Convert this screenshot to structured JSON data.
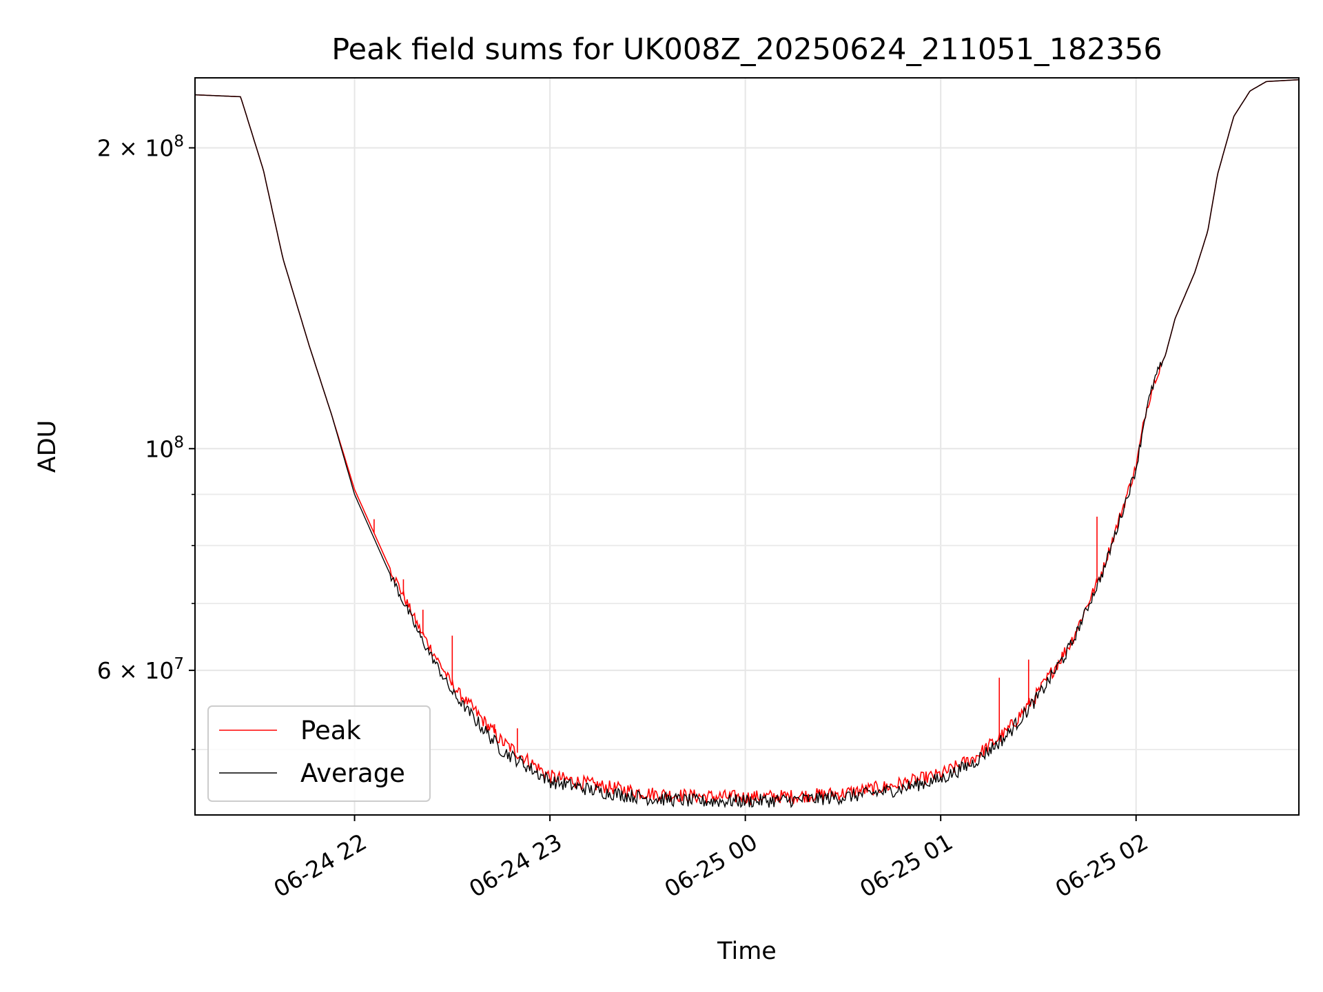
{
  "chart_data": {
    "type": "line",
    "title": "Peak field sums for UK008Z_20250624_211051_182356",
    "xlabel": "Time",
    "ylabel": "ADU",
    "yscale": "log",
    "ylim": [
      43000000,
      235000000
    ],
    "xlim": [
      "2025-06-24 21:11",
      "2025-06-25 02:50"
    ],
    "x_ticks": [
      {
        "value": "2025-06-24 22:00",
        "label": "06-24 22"
      },
      {
        "value": "2025-06-24 23:00",
        "label": "06-24 23"
      },
      {
        "value": "2025-06-25 00:00",
        "label": "06-25 00"
      },
      {
        "value": "2025-06-25 01:00",
        "label": "06-25 01"
      },
      {
        "value": "2025-06-25 02:00",
        "label": "06-25 02"
      }
    ],
    "y_ticks": [
      {
        "value": 60000000,
        "base": "6 × 10",
        "exp": "7"
      },
      {
        "value": 100000000,
        "base": "10",
        "exp": "8"
      },
      {
        "value": 200000000,
        "base": "2 × 10",
        "exp": "8"
      }
    ],
    "y_minor_ticks": [
      50000000,
      70000000,
      80000000,
      90000000
    ],
    "grid": true,
    "legend": {
      "position": "lower-left"
    },
    "series": [
      {
        "name": "Peak",
        "color": "#ff0000",
        "x": [
          "2025-06-24 21:11",
          "2025-06-24 21:25",
          "2025-06-24 21:32",
          "2025-06-24 21:38",
          "2025-06-24 21:46",
          "2025-06-24 21:53",
          "2025-06-24 22:00",
          "2025-06-24 22:10",
          "2025-06-24 22:20",
          "2025-06-24 22:30",
          "2025-06-24 22:45",
          "2025-06-24 23:00",
          "2025-06-24 23:15",
          "2025-06-24 23:30",
          "2025-06-24 23:45",
          "2025-06-25 00:00",
          "2025-06-25 00:15",
          "2025-06-25 00:30",
          "2025-06-25 00:45",
          "2025-06-25 01:00",
          "2025-06-25 01:10",
          "2025-06-25 01:20",
          "2025-06-25 01:30",
          "2025-06-25 01:40",
          "2025-06-25 01:50",
          "2025-06-25 02:00",
          "2025-06-25 02:03",
          "2025-06-25 02:06",
          "2025-06-25 02:09",
          "2025-06-25 02:12",
          "2025-06-25 02:18",
          "2025-06-25 02:22",
          "2025-06-25 02:25",
          "2025-06-25 02:30",
          "2025-06-25 02:35",
          "2025-06-25 02:40",
          "2025-06-25 02:50"
        ],
        "y": [
          226000000,
          225000000,
          190000000,
          155000000,
          127000000,
          108000000,
          91000000,
          77000000,
          66000000,
          58000000,
          51000000,
          47000000,
          46000000,
          45200000,
          44900000,
          44800000,
          44900000,
          45200000,
          46000000,
          47200000,
          49000000,
          52000000,
          57000000,
          64000000,
          76000000,
          96000000,
          109000000,
          118000000,
          124000000,
          135000000,
          150000000,
          165000000,
          188000000,
          215000000,
          228000000,
          233000000,
          234000000
        ]
      },
      {
        "name": "Average",
        "color": "#000000",
        "x": [
          "2025-06-24 21:11",
          "2025-06-24 21:25",
          "2025-06-24 21:32",
          "2025-06-24 21:38",
          "2025-06-24 21:46",
          "2025-06-24 21:53",
          "2025-06-24 22:00",
          "2025-06-24 22:10",
          "2025-06-24 22:20",
          "2025-06-24 22:30",
          "2025-06-24 22:45",
          "2025-06-24 23:00",
          "2025-06-24 23:15",
          "2025-06-24 23:30",
          "2025-06-24 23:45",
          "2025-06-25 00:00",
          "2025-06-25 00:15",
          "2025-06-25 00:30",
          "2025-06-25 00:45",
          "2025-06-25 01:00",
          "2025-06-25 01:10",
          "2025-06-25 01:20",
          "2025-06-25 01:30",
          "2025-06-25 01:40",
          "2025-06-25 01:50",
          "2025-06-25 02:00",
          "2025-06-25 02:03",
          "2025-06-25 02:06",
          "2025-06-25 02:09",
          "2025-06-25 02:12",
          "2025-06-25 02:18",
          "2025-06-25 02:22",
          "2025-06-25 02:25",
          "2025-06-25 02:30",
          "2025-06-25 02:35",
          "2025-06-25 02:40",
          "2025-06-25 02:50"
        ],
        "y": [
          226000000,
          225000000,
          190000000,
          155000000,
          127000000,
          108000000,
          90000000,
          76000000,
          65000000,
          57000000,
          50000000,
          46500000,
          45400000,
          44700000,
          44400000,
          44400000,
          44500000,
          44800000,
          45500000,
          46700000,
          48500000,
          51500000,
          56500000,
          63500000,
          75500000,
          95500000,
          109000000,
          118000000,
          124000000,
          135000000,
          150000000,
          165000000,
          188000000,
          215000000,
          228000000,
          233000000,
          234000000
        ]
      }
    ],
    "spikes": [
      {
        "x": "2025-06-24 22:06",
        "y": 85000000
      },
      {
        "x": "2025-06-24 22:15",
        "y": 74000000
      },
      {
        "x": "2025-06-24 22:21",
        "y": 69000000
      },
      {
        "x": "2025-06-24 22:30",
        "y": 65000000
      },
      {
        "x": "2025-06-24 22:43",
        "y": 53000000
      },
      {
        "x": "2025-06-24 22:50",
        "y": 52500000
      },
      {
        "x": "2025-06-25 01:18",
        "y": 59000000
      },
      {
        "x": "2025-06-25 01:27",
        "y": 61500000
      },
      {
        "x": "2025-06-25 01:48",
        "y": 85500000
      }
    ]
  }
}
